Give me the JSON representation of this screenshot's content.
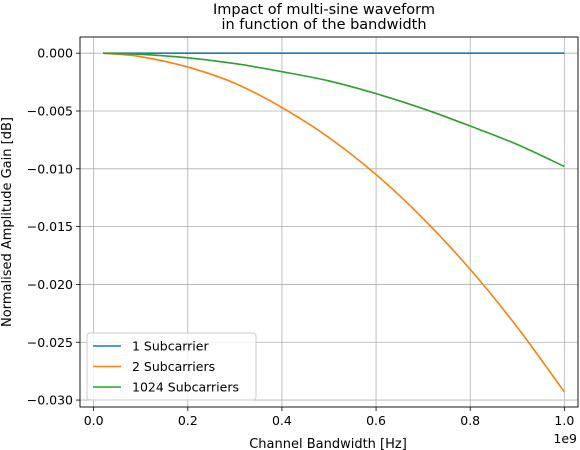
{
  "chart_data": {
    "type": "line",
    "title": [
      "Impact of multi-sine waveform",
      "in function of the bandwidth"
    ],
    "xlabel": "Channel Bandwidth [Hz]",
    "ylabel": "Normalised Amplitude Gain [dB]",
    "x_offset_label": "1e9",
    "xlim": [
      -0.029,
      1.029
    ],
    "ylim": [
      -0.0306,
      0.0014
    ],
    "xticks": [
      0.0,
      0.2,
      0.4,
      0.6,
      0.8,
      1.0
    ],
    "xtick_labels": [
      "0.0",
      "0.2",
      "0.4",
      "0.6",
      "0.8",
      "1.0"
    ],
    "yticks": [
      0.0,
      -0.005,
      -0.01,
      -0.015,
      -0.02,
      -0.025,
      -0.03
    ],
    "ytick_labels": [
      "0.000",
      "−0.005",
      "−0.010",
      "−0.015",
      "−0.020",
      "−0.025",
      "−0.030"
    ],
    "grid": true,
    "legend_position": "lower left",
    "x": [
      0.02,
      0.1,
      0.2,
      0.3,
      0.4,
      0.5,
      0.6,
      0.7,
      0.8,
      0.9,
      1.0
    ],
    "series": [
      {
        "name": "1 Subcarrier",
        "color": "#1f77b4",
        "values": [
          0.0,
          0.0,
          0.0,
          0.0,
          0.0,
          0.0,
          0.0,
          0.0,
          0.0,
          0.0,
          0.0
        ]
      },
      {
        "name": "2 Subcarriers",
        "color": "#ff7f0e",
        "values": [
          0.0,
          -0.0003,
          -0.0012,
          -0.0026,
          -0.0047,
          -0.0073,
          -0.0105,
          -0.0143,
          -0.0187,
          -0.0237,
          -0.0293
        ]
      },
      {
        "name": "1024 Subcarriers",
        "color": "#2ca02c",
        "values": [
          0.0,
          -0.0001,
          -0.0004,
          -0.0009,
          -0.0016,
          -0.0024,
          -0.0035,
          -0.0048,
          -0.0063,
          -0.0079,
          -0.0098
        ]
      }
    ]
  }
}
